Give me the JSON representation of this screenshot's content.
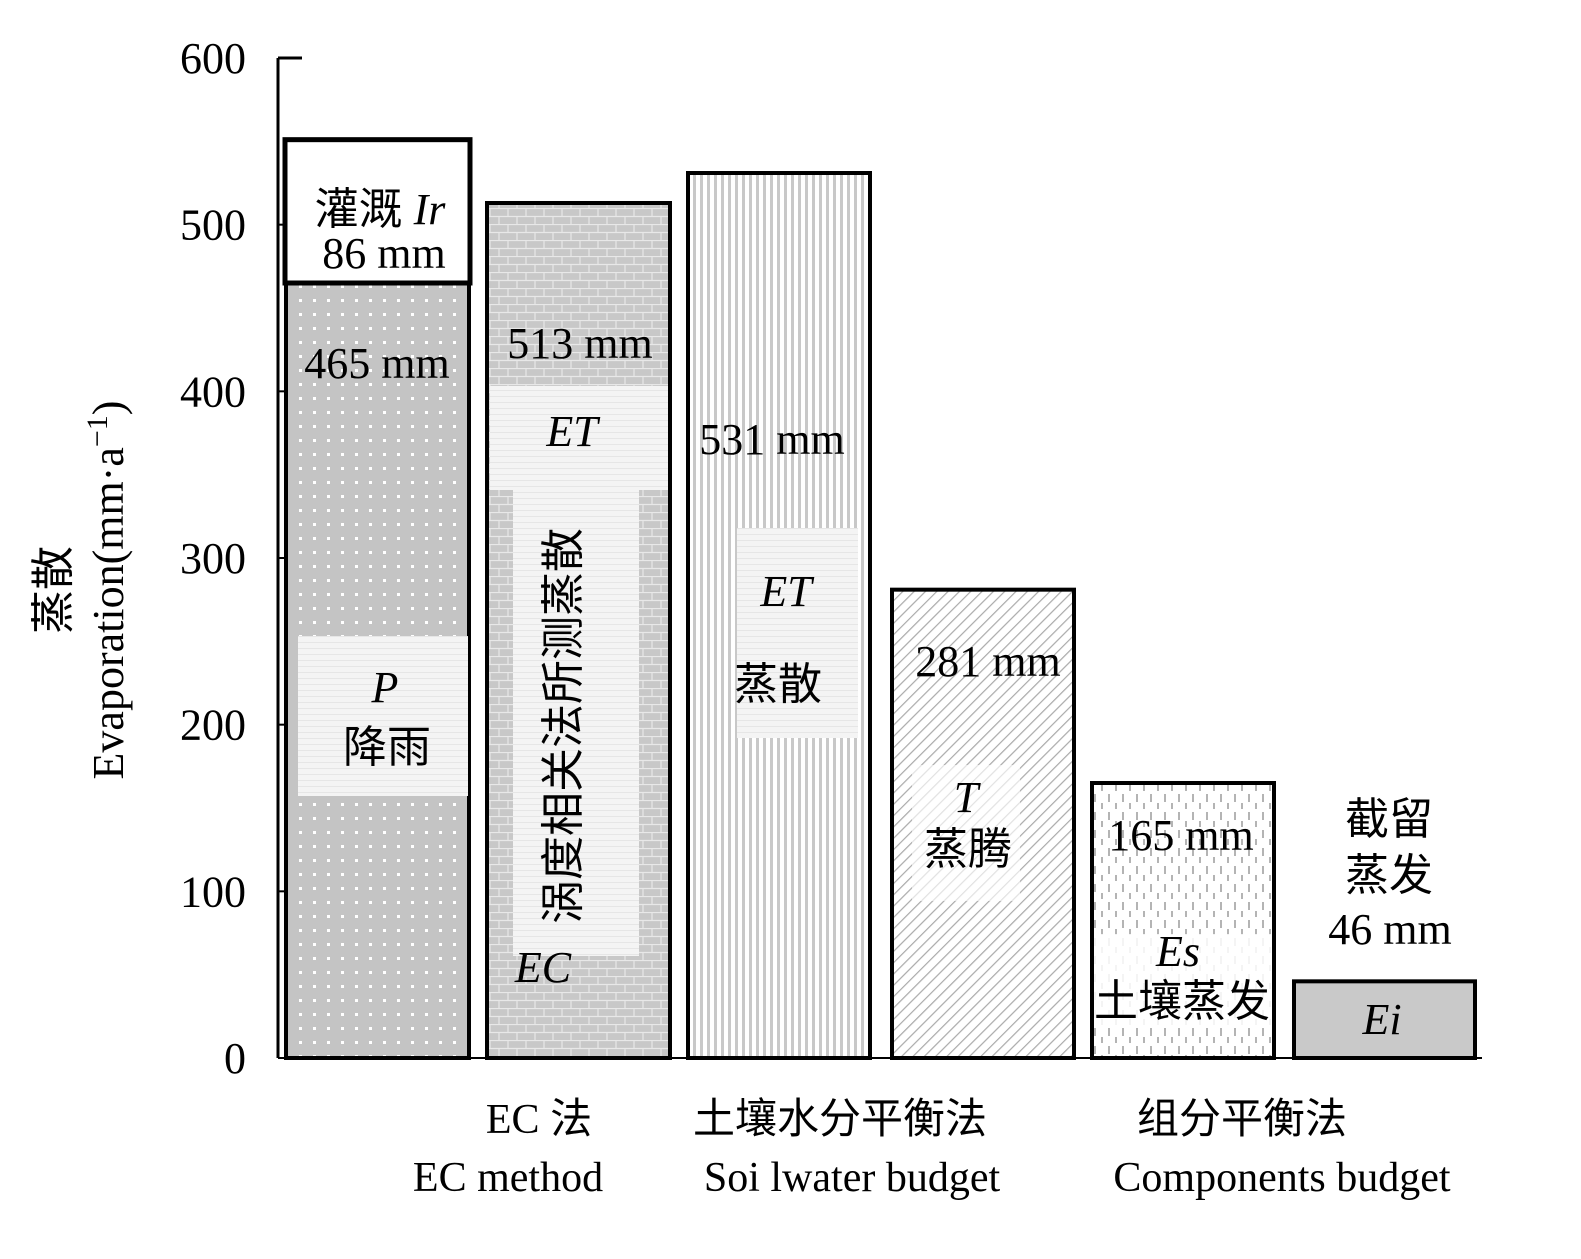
{
  "chart_data": {
    "type": "bar",
    "ylabel_cn": "蒸散",
    "ylabel_en": "Evaporation(mm·a",
    "ylabel_sup": "−1",
    "ylabel_close": ")",
    "ylim": [
      0,
      600
    ],
    "yticks": [
      "0",
      "100",
      "200",
      "300",
      "400",
      "500",
      "600"
    ],
    "categories": [
      {
        "cn": "EC 法",
        "en": "EC method"
      },
      {
        "cn": "土壤水分平衡法",
        "en": "Soi lwater budget"
      },
      {
        "cn": "组分平衡法",
        "en": "Components budget"
      }
    ],
    "bars": [
      {
        "key": "precip",
        "value": 465,
        "label": "465 mm",
        "inner": [
          "P",
          "降雨"
        ]
      },
      {
        "key": "irrigation",
        "stack_on": 465,
        "value": 86,
        "label": "86 mm",
        "prefix": "灌溉 ",
        "symbol": "Ir"
      },
      {
        "key": "ec",
        "value": 513,
        "label": "513 mm",
        "symbol": "ET",
        "vertical": "涡度相关法所测蒸散",
        "symbol2": "EC"
      },
      {
        "key": "swb",
        "value": 531,
        "label": "531 mm",
        "inner": [
          "ET",
          "蒸散"
        ]
      },
      {
        "key": "transpiration",
        "value": 281,
        "label": "281 mm",
        "inner": [
          "T",
          "蒸腾"
        ]
      },
      {
        "key": "soil_evap",
        "value": 165,
        "label": "165 mm",
        "inner": [
          "Es",
          "土壤蒸发"
        ]
      },
      {
        "key": "interception",
        "value": 46,
        "label": "46 mm",
        "above": [
          "截留",
          "蒸发"
        ],
        "symbol": "Ei"
      }
    ],
    "grid": false,
    "legend": "none"
  }
}
